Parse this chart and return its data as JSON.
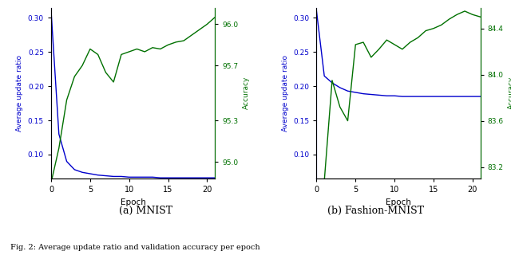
{
  "mnist": {
    "epochs": [
      0,
      1,
      2,
      3,
      4,
      5,
      6,
      7,
      8,
      9,
      10,
      11,
      12,
      13,
      14,
      15,
      16,
      17,
      18,
      19,
      20,
      21
    ],
    "update_ratio": [
      0.31,
      0.13,
      0.09,
      0.078,
      0.074,
      0.072,
      0.07,
      0.069,
      0.068,
      0.068,
      0.067,
      0.067,
      0.067,
      0.067,
      0.066,
      0.066,
      0.066,
      0.066,
      0.066,
      0.066,
      0.066,
      0.066
    ],
    "accuracy": [
      94.85,
      95.1,
      95.45,
      95.62,
      95.7,
      95.82,
      95.78,
      95.65,
      95.58,
      95.78,
      95.8,
      95.82,
      95.8,
      95.83,
      95.82,
      95.85,
      95.87,
      95.88,
      95.92,
      95.96,
      96.0,
      96.05
    ],
    "ylabel_left": "Average update ratio",
    "ylabel_right": "Accuracy",
    "xlabel": "Epoch",
    "ylim_left": [
      0.065,
      0.315
    ],
    "ylim_right": [
      94.88,
      96.12
    ],
    "yticks_right": [
      95.0,
      95.3,
      95.7,
      96.0
    ],
    "yticks_left": [
      0.1,
      0.15,
      0.2,
      0.25,
      0.3
    ]
  },
  "fashion": {
    "epochs": [
      0,
      1,
      2,
      3,
      4,
      5,
      6,
      7,
      8,
      9,
      10,
      11,
      12,
      13,
      14,
      15,
      16,
      17,
      18,
      19,
      20,
      21
    ],
    "update_ratio": [
      0.31,
      0.215,
      0.205,
      0.198,
      0.193,
      0.191,
      0.189,
      0.188,
      0.187,
      0.186,
      0.186,
      0.185,
      0.185,
      0.185,
      0.185,
      0.185,
      0.185,
      0.185,
      0.185,
      0.185,
      0.185,
      0.185
    ],
    "accuracy": [
      83.05,
      83.08,
      83.95,
      83.72,
      83.6,
      84.26,
      84.28,
      84.15,
      84.22,
      84.3,
      84.26,
      84.22,
      84.28,
      84.32,
      84.38,
      84.4,
      84.43,
      84.48,
      84.52,
      84.55,
      84.52,
      84.5
    ],
    "ylabel_left": "Average update ratio",
    "ylabel_right": "Accuracy",
    "xlabel": "Epoch",
    "ylim_left": [
      0.065,
      0.315
    ],
    "ylim_right": [
      83.1,
      84.58
    ],
    "yticks_right": [
      83.2,
      83.6,
      84.0,
      84.4
    ],
    "yticks_left": [
      0.1,
      0.15,
      0.2,
      0.25,
      0.3
    ]
  },
  "line_color_blue": "#0000cc",
  "line_color_green": "#007000",
  "caption": "(a) MNIST",
  "caption2": "(b) Fashion-MNIST",
  "fig_caption": "Fig. 2: Average update ratio and validation accuracy per epoch"
}
